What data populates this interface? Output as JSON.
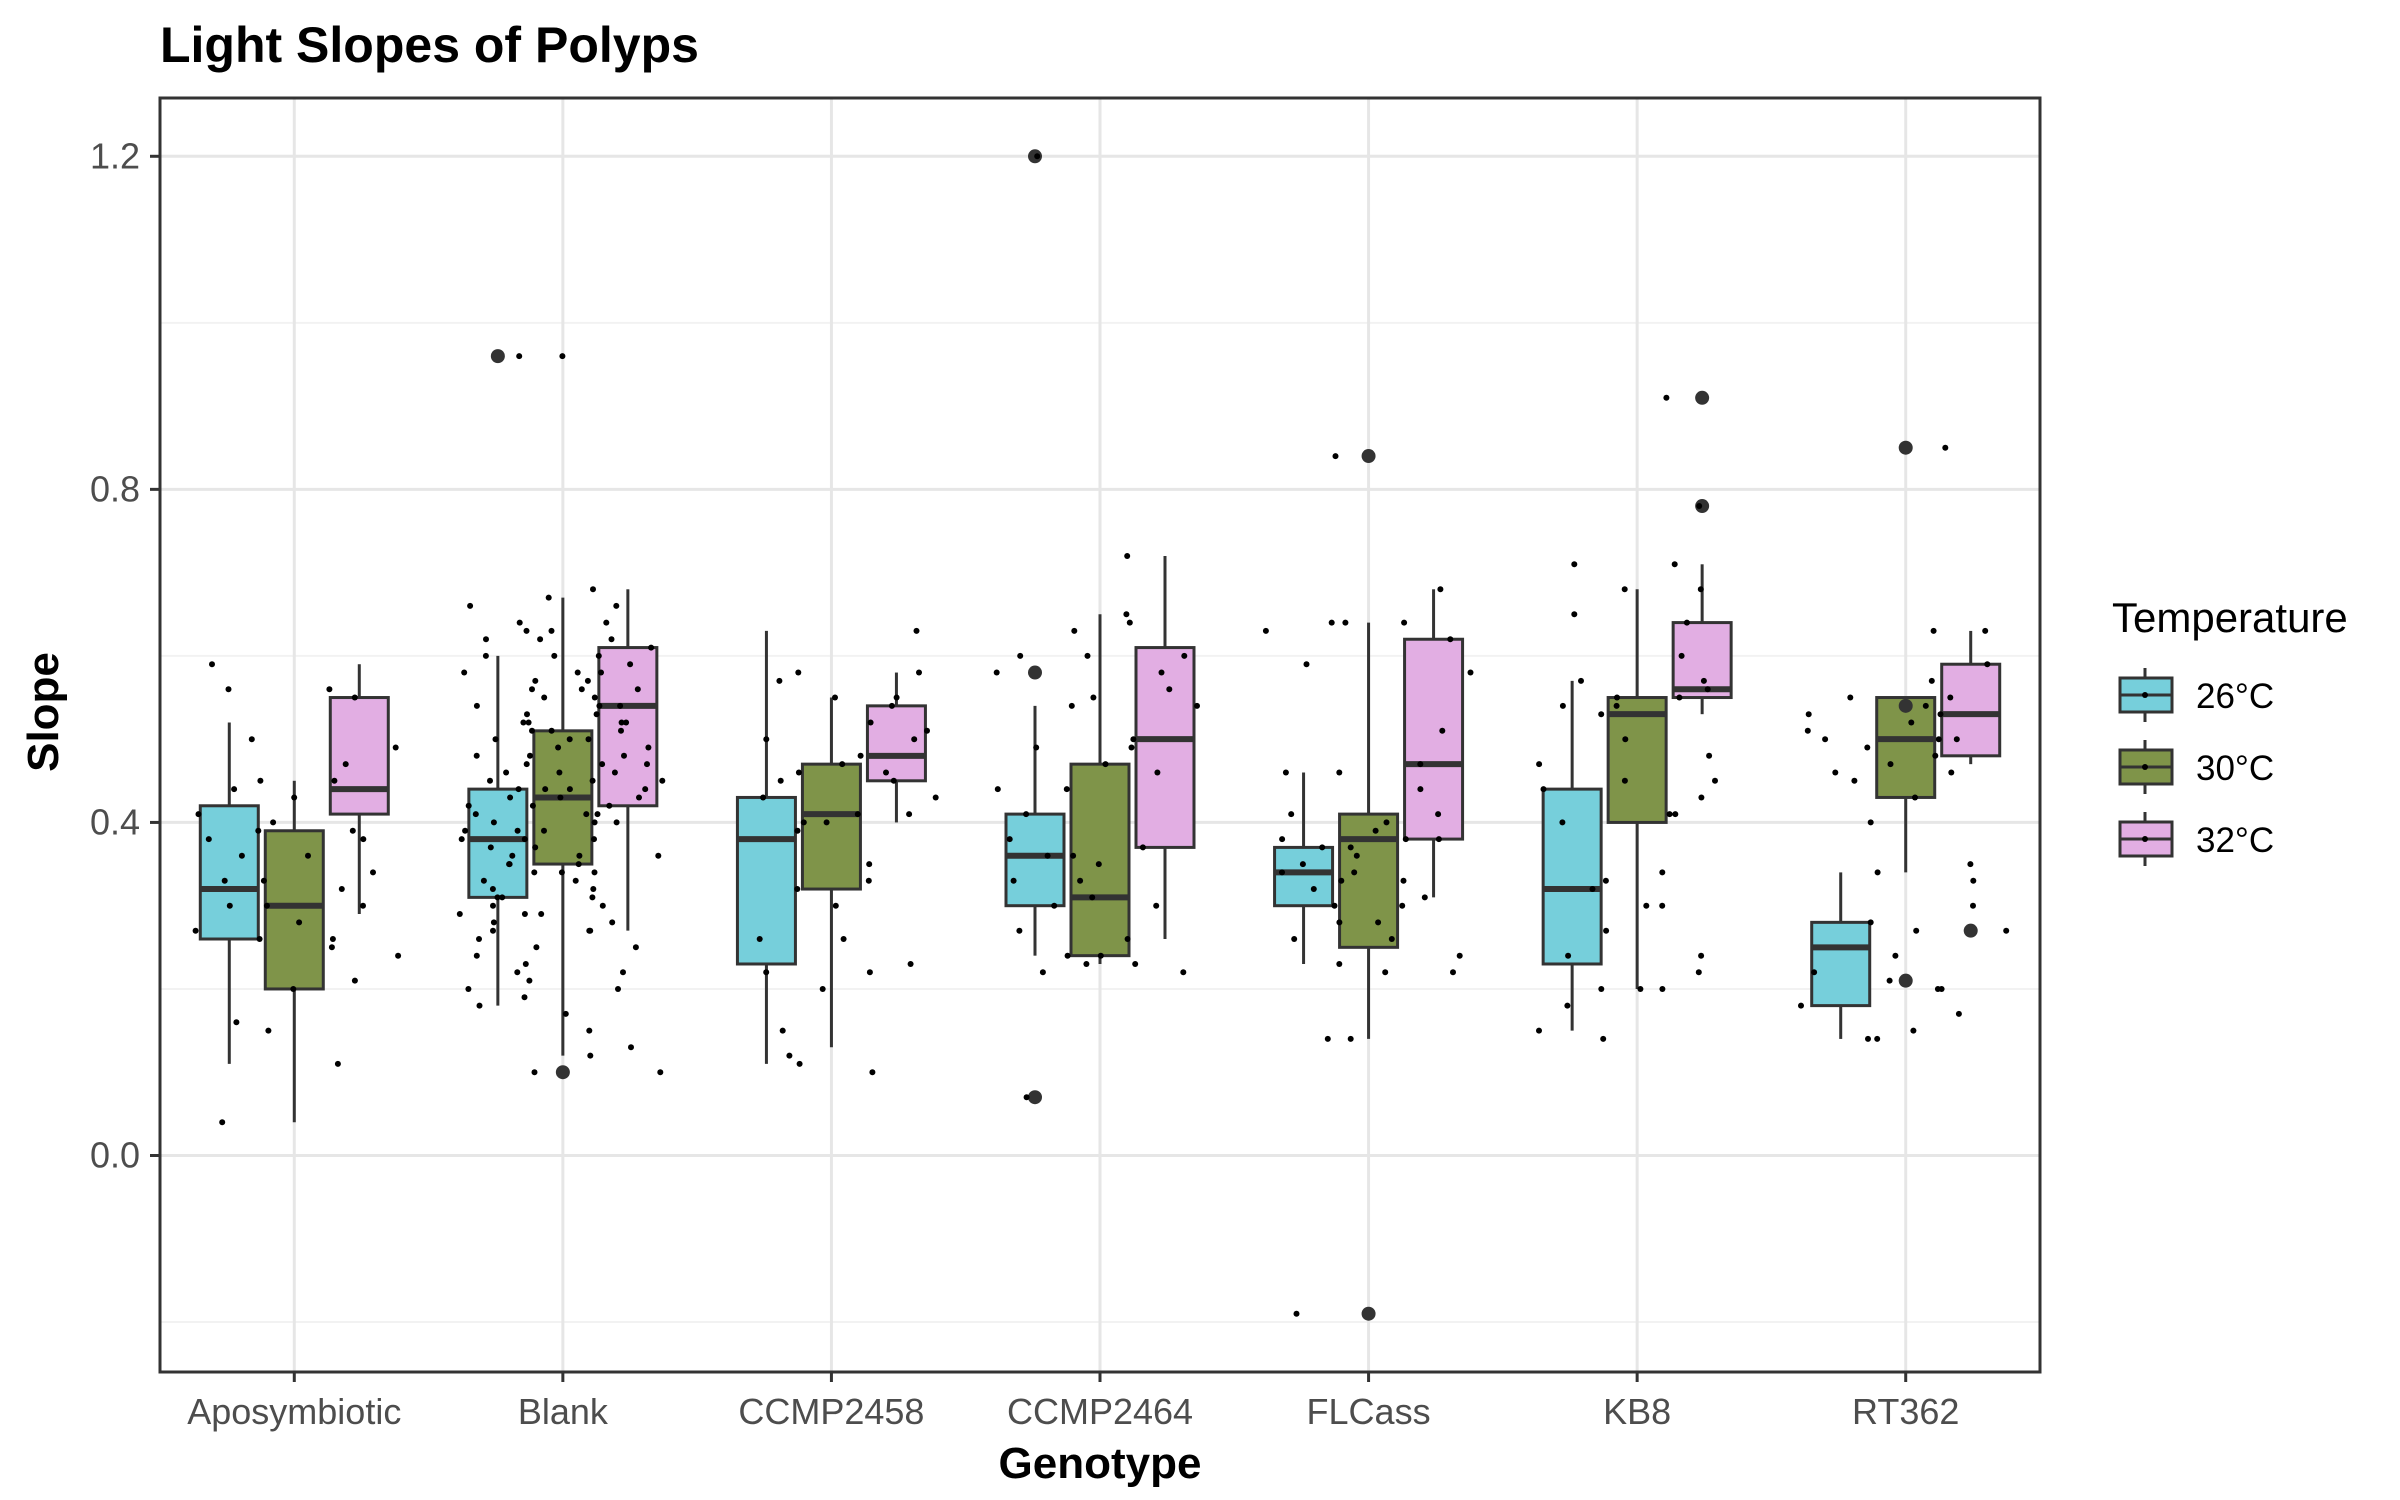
{
  "chart_data": {
    "type": "boxplot",
    "title": "Light Slopes of Polyps",
    "xlabel": "Genotype",
    "ylabel": "Slope",
    "ylim": [
      -0.26,
      1.27
    ],
    "yticks": [
      0.0,
      0.4,
      0.8,
      1.2
    ],
    "yticklabels": [
      "0.0",
      "0.4",
      "0.8",
      "1.2"
    ],
    "grid": true,
    "legend": {
      "title": "Temperature",
      "position": "right"
    },
    "categories": [
      "Aposymbiotic",
      "Blank",
      "CCMP2458",
      "CCMP2464",
      "FLCass",
      "KB8",
      "RT362"
    ],
    "series": [
      {
        "name": "26°C",
        "color": "#76CFDB",
        "boxes": [
          {
            "whisker_low": 0.11,
            "q1": 0.26,
            "median": 0.32,
            "q3": 0.42,
            "whisker_high": 0.52,
            "outliers": []
          },
          {
            "whisker_low": 0.18,
            "q1": 0.31,
            "median": 0.38,
            "q3": 0.44,
            "whisker_high": 0.6,
            "outliers": [
              0.96
            ]
          },
          {
            "whisker_low": 0.11,
            "q1": 0.23,
            "median": 0.38,
            "q3": 0.43,
            "whisker_high": 0.63,
            "outliers": []
          },
          {
            "whisker_low": 0.24,
            "q1": 0.3,
            "median": 0.36,
            "q3": 0.41,
            "whisker_high": 0.54,
            "outliers": [
              1.2,
              0.58,
              0.07
            ]
          },
          {
            "whisker_low": 0.23,
            "q1": 0.3,
            "median": 0.34,
            "q3": 0.37,
            "whisker_high": 0.46,
            "outliers": []
          },
          {
            "whisker_low": 0.15,
            "q1": 0.23,
            "median": 0.32,
            "q3": 0.44,
            "whisker_high": 0.57,
            "outliers": []
          },
          {
            "whisker_low": 0.14,
            "q1": 0.18,
            "median": 0.25,
            "q3": 0.28,
            "whisker_high": 0.34,
            "outliers": []
          }
        ]
      },
      {
        "name": "30°C",
        "color": "#7F9449",
        "boxes": [
          {
            "whisker_low": 0.04,
            "q1": 0.2,
            "median": 0.3,
            "q3": 0.39,
            "whisker_high": 0.45,
            "outliers": []
          },
          {
            "whisker_low": 0.12,
            "q1": 0.35,
            "median": 0.43,
            "q3": 0.51,
            "whisker_high": 0.67,
            "outliers": [
              0.1
            ]
          },
          {
            "whisker_low": 0.13,
            "q1": 0.32,
            "median": 0.41,
            "q3": 0.47,
            "whisker_high": 0.55,
            "outliers": []
          },
          {
            "whisker_low": 0.23,
            "q1": 0.24,
            "median": 0.31,
            "q3": 0.47,
            "whisker_high": 0.65,
            "outliers": []
          },
          {
            "whisker_low": 0.14,
            "q1": 0.25,
            "median": 0.38,
            "q3": 0.41,
            "whisker_high": 0.64,
            "outliers": [
              0.84,
              -0.19
            ]
          },
          {
            "whisker_low": 0.2,
            "q1": 0.4,
            "median": 0.53,
            "q3": 0.55,
            "whisker_high": 0.68,
            "outliers": []
          },
          {
            "whisker_low": 0.34,
            "q1": 0.43,
            "median": 0.5,
            "q3": 0.55,
            "whisker_high": 0.55,
            "outliers": [
              0.54,
              0.85,
              0.21
            ]
          }
        ]
      },
      {
        "name": "32°C",
        "color": "#E2AEE3",
        "boxes": [
          {
            "whisker_low": 0.29,
            "q1": 0.41,
            "median": 0.44,
            "q3": 0.55,
            "whisker_high": 0.59,
            "outliers": []
          },
          {
            "whisker_low": 0.27,
            "q1": 0.42,
            "median": 0.54,
            "q3": 0.61,
            "whisker_high": 0.68,
            "outliers": []
          },
          {
            "whisker_low": 0.4,
            "q1": 0.45,
            "median": 0.48,
            "q3": 0.54,
            "whisker_high": 0.58,
            "outliers": []
          },
          {
            "whisker_low": 0.26,
            "q1": 0.37,
            "median": 0.5,
            "q3": 0.61,
            "whisker_high": 0.72,
            "outliers": []
          },
          {
            "whisker_low": 0.31,
            "q1": 0.38,
            "median": 0.47,
            "q3": 0.62,
            "whisker_high": 0.68,
            "outliers": []
          },
          {
            "whisker_low": 0.53,
            "q1": 0.55,
            "median": 0.56,
            "q3": 0.64,
            "whisker_high": 0.71,
            "outliers": [
              0.91,
              0.78
            ]
          },
          {
            "whisker_low": 0.47,
            "q1": 0.48,
            "median": 0.53,
            "q3": 0.59,
            "whisker_high": 0.63,
            "outliers": [
              0.27
            ]
          }
        ]
      }
    ],
    "raw_points": [
      [
        [
          0.56,
          0.44,
          0.41,
          0.38,
          0.33,
          0.3,
          0.27,
          0.26,
          0.16,
          0.04,
          0.59,
          0.5,
          0.36
        ],
        [
          0.45,
          0.43,
          0.4,
          0.36,
          0.3,
          0.28,
          0.2,
          0.15,
          0.39,
          0.56,
          0.25,
          0.33
        ],
        [
          0.55,
          0.49,
          0.45,
          0.39,
          0.38,
          0.34,
          0.32,
          0.26,
          0.24,
          0.21,
          0.11,
          0.3,
          0.47
        ]
      ],
      [
        [
          0.66,
          0.64,
          0.62,
          0.6,
          0.58,
          0.56,
          0.54,
          0.52,
          0.5,
          0.48,
          0.46,
          0.45,
          0.44,
          0.43,
          0.42,
          0.41,
          0.4,
          0.39,
          0.38,
          0.37,
          0.36,
          0.35,
          0.34,
          0.33,
          0.32,
          0.31,
          0.3,
          0.29,
          0.28,
          0.27,
          0.26,
          0.24,
          0.22,
          0.2,
          0.18,
          0.96,
          0.63,
          0.57,
          0.51,
          0.47,
          0.39,
          0.35,
          0.31,
          0.29
        ],
        [
          0.67,
          0.63,
          0.62,
          0.6,
          0.58,
          0.56,
          0.55,
          0.54,
          0.52,
          0.51,
          0.5,
          0.49,
          0.48,
          0.47,
          0.46,
          0.45,
          0.44,
          0.43,
          0.42,
          0.41,
          0.4,
          0.39,
          0.38,
          0.37,
          0.36,
          0.35,
          0.33,
          0.31,
          0.29,
          0.27,
          0.25,
          0.23,
          0.21,
          0.19,
          0.17,
          0.15,
          0.12,
          0.1,
          0.96,
          0.53,
          0.44,
          0.34
        ],
        [
          0.68,
          0.66,
          0.64,
          0.62,
          0.61,
          0.6,
          0.58,
          0.57,
          0.56,
          0.55,
          0.54,
          0.53,
          0.52,
          0.51,
          0.5,
          0.49,
          0.48,
          0.47,
          0.46,
          0.45,
          0.44,
          0.43,
          0.42,
          0.4,
          0.38,
          0.36,
          0.34,
          0.32,
          0.3,
          0.28,
          0.27,
          0.25,
          0.22,
          0.2,
          0.13,
          0.1,
          0.59,
          0.52,
          0.41
        ]
      ],
      [
        [
          0.58,
          0.57,
          0.5,
          0.46,
          0.45,
          0.43,
          0.4,
          0.32,
          0.26,
          0.22,
          0.15,
          0.12,
          0.11
        ],
        [
          0.55,
          0.52,
          0.47,
          0.41,
          0.4,
          0.39,
          0.35,
          0.3,
          0.26,
          0.2
        ],
        [
          0.63,
          0.58,
          0.55,
          0.54,
          0.51,
          0.5,
          0.48,
          0.46,
          0.45,
          0.43,
          0.41,
          0.33,
          0.23,
          0.22,
          0.1
        ]
      ],
      [
        [
          1.2,
          0.6,
          0.58,
          0.54,
          0.49,
          0.44,
          0.41,
          0.38,
          0.36,
          0.33,
          0.3,
          0.27,
          0.24,
          0.22,
          0.07
        ],
        [
          0.65,
          0.63,
          0.6,
          0.55,
          0.49,
          0.47,
          0.44,
          0.36,
          0.35,
          0.33,
          0.31,
          0.24,
          0.23
        ],
        [
          0.72,
          0.64,
          0.6,
          0.58,
          0.56,
          0.54,
          0.5,
          0.46,
          0.37,
          0.3,
          0.26,
          0.23,
          0.22
        ]
      ],
      [
        [
          0.64,
          0.63,
          0.59,
          0.46,
          0.41,
          0.38,
          0.37,
          0.35,
          0.34,
          0.32,
          0.3,
          0.28,
          0.26,
          0.23,
          0.14,
          -0.19
        ],
        [
          0.84,
          0.64,
          0.46,
          0.4,
          0.39,
          0.38,
          0.37,
          0.36,
          0.34,
          0.33,
          0.3,
          0.28,
          0.26,
          0.22,
          0.14
        ],
        [
          0.68,
          0.64,
          0.62,
          0.58,
          0.51,
          0.47,
          0.44,
          0.41,
          0.38,
          0.33,
          0.31,
          0.24,
          0.22
        ]
      ],
      [
        [
          0.71,
          0.65,
          0.57,
          0.54,
          0.47,
          0.44,
          0.4,
          0.33,
          0.32,
          0.27,
          0.24,
          0.2,
          0.18,
          0.15,
          0.14
        ],
        [
          0.68,
          0.55,
          0.54,
          0.53,
          0.5,
          0.45,
          0.41,
          0.34,
          0.3,
          0.2
        ],
        [
          0.91,
          0.78,
          0.71,
          0.68,
          0.64,
          0.6,
          0.57,
          0.56,
          0.55,
          0.48,
          0.45,
          0.43,
          0.41,
          0.3,
          0.24,
          0.22,
          0.2
        ]
      ],
      [
        [
          0.55,
          0.53,
          0.51,
          0.5,
          0.46,
          0.45,
          0.34,
          0.28,
          0.22,
          0.18,
          0.14
        ],
        [
          0.85,
          0.63,
          0.54,
          0.52,
          0.5,
          0.49,
          0.47,
          0.43,
          0.4,
          0.27,
          0.24,
          0.21,
          0.2,
          0.15,
          0.14
        ],
        [
          0.63,
          0.59,
          0.57,
          0.55,
          0.53,
          0.5,
          0.48,
          0.46,
          0.35,
          0.33,
          0.3,
          0.27,
          0.2,
          0.17
        ]
      ]
    ]
  }
}
